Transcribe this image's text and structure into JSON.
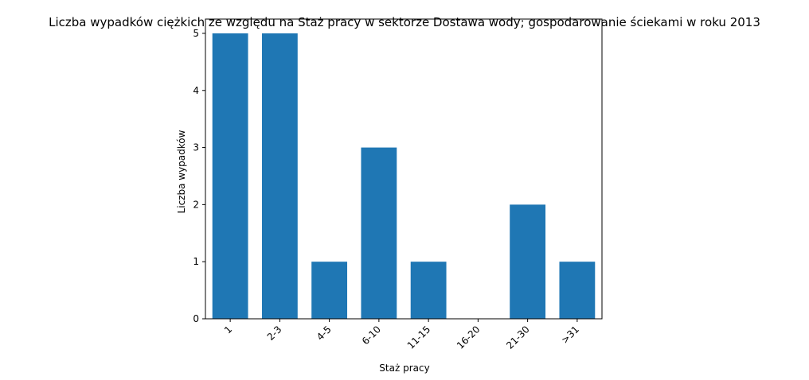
{
  "chart_data": {
    "type": "bar",
    "title": "Liczba wypadków ciężkich ze względu na Staż pracy w sektorze Dostawa wody; gospodarowanie ściekami w roku 2013",
    "xlabel": "Staż pracy",
    "ylabel": "Liczba wypadków",
    "categories": [
      "1",
      "2-3",
      "4-5",
      "6-10",
      "11-15",
      "16-20",
      "21-30",
      ">31"
    ],
    "values": [
      5,
      5,
      1,
      3,
      1,
      0,
      2,
      1
    ],
    "ylim": [
      0,
      5.25
    ],
    "yticks": [
      0,
      1,
      2,
      3,
      4,
      5
    ],
    "bar_color": "#1f77b4",
    "grid": false,
    "xtick_rotation": 45
  }
}
